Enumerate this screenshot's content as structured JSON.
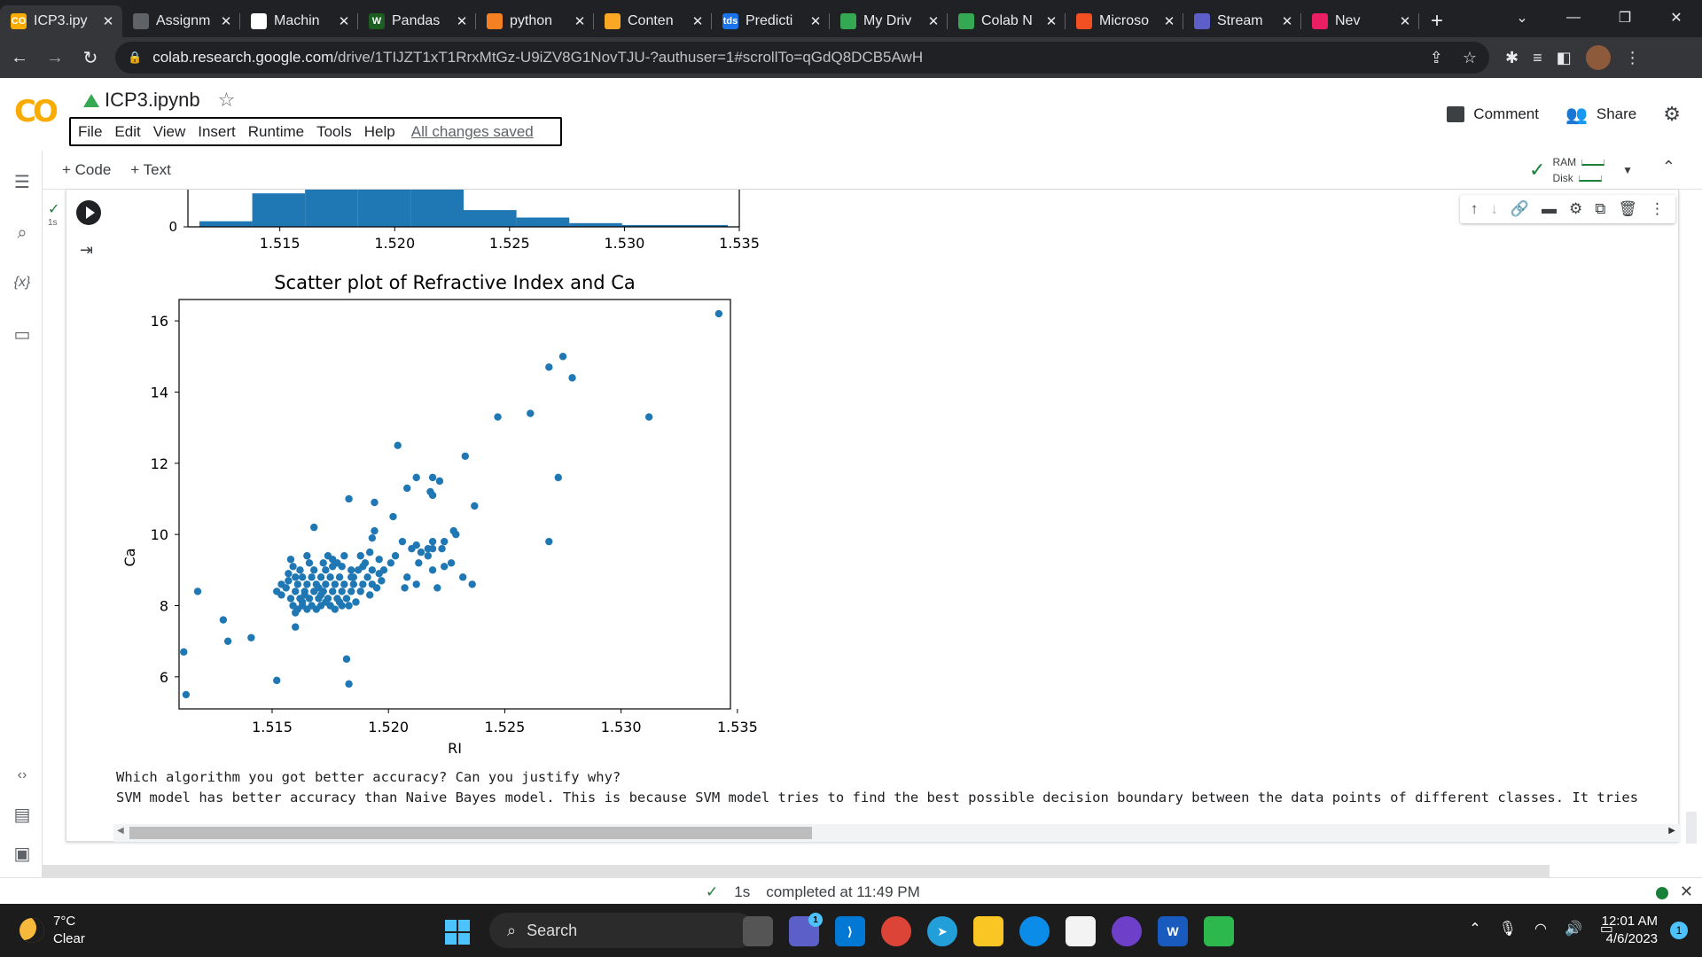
{
  "browser": {
    "tabs": [
      {
        "label": "ICP3.ipy",
        "fav_color": "#f9ab00",
        "fav_text": "CO",
        "active": true
      },
      {
        "label": "Assignm",
        "fav_color": "#5f6368",
        "fav_text": "",
        "active": false
      },
      {
        "label": "Machin",
        "fav_color": "#ffffff",
        "fav_text": "",
        "active": false
      },
      {
        "label": "Pandas",
        "fav_color": "#1b5e20",
        "fav_text": "W",
        "active": false
      },
      {
        "label": "python",
        "fav_color": "#f48024",
        "fav_text": "",
        "active": false
      },
      {
        "label": "Conten",
        "fav_color": "#f9a825",
        "fav_text": "",
        "active": false
      },
      {
        "label": "Predicti",
        "fav_color": "#1a73e8",
        "fav_text": "tds",
        "active": false
      },
      {
        "label": "My Driv",
        "fav_color": "#34a853",
        "fav_text": "",
        "active": false
      },
      {
        "label": "Colab N",
        "fav_color": "#34a853",
        "fav_text": "",
        "active": false
      },
      {
        "label": "Microso",
        "fav_color": "#f25022",
        "fav_text": "",
        "active": false
      },
      {
        "label": "Stream",
        "fav_color": "#5b5fc7",
        "fav_text": "",
        "active": false
      },
      {
        "label": "Nev",
        "fav_color": "#e91e63",
        "fav_text": "",
        "active": false
      }
    ],
    "url_host": "colab.research.google.com",
    "url_path": "/drive/1TIJZT1xT1RrxMtGz-U9iZV8G1NovTJU-?authuser=1#scrollTo=qGdQ8DCB5AwH"
  },
  "colab": {
    "logo": "CO",
    "doc_title": "ICP3.ipynb",
    "menu": [
      "File",
      "Edit",
      "View",
      "Insert",
      "Runtime",
      "Tools",
      "Help"
    ],
    "save_status": "All changes saved",
    "comment_label": "Comment",
    "share_label": "Share",
    "add_code": "+ Code",
    "add_text": "+ Text",
    "ram_label": "RAM",
    "disk_label": "Disk",
    "exec_time": "1s"
  },
  "chart_data": [
    {
      "type": "bar",
      "description": "histogram (partially visible, top cropped)",
      "x": [
        1.5115,
        1.5138,
        1.5161,
        1.5184,
        1.5207,
        1.523,
        1.5253,
        1.5276,
        1.5299,
        1.5322
      ],
      "values": [
        3,
        18,
        20,
        20,
        20,
        9,
        5,
        2,
        1,
        1
      ],
      "xticks": [
        "1.515",
        "1.520",
        "1.525",
        "1.530",
        "1.535"
      ],
      "yticks": [
        "0"
      ],
      "xlim": [
        1.511,
        1.535
      ]
    },
    {
      "type": "scatter",
      "title": "Scatter plot of Refractive Index and Ca",
      "xlabel": "RI",
      "ylabel": "Ca",
      "xlim": [
        1.511,
        1.5347
      ],
      "ylim": [
        5.1,
        16.6
      ],
      "xticks": [
        "1.515",
        "1.520",
        "1.525",
        "1.530",
        "1.535"
      ],
      "yticks": [
        "6",
        "8",
        "10",
        "12",
        "14",
        "16"
      ],
      "color": "#1f77b4",
      "points": [
        [
          1.5342,
          16.2
        ],
        [
          1.5275,
          15.0
        ],
        [
          1.5269,
          14.7
        ],
        [
          1.5279,
          14.4
        ],
        [
          1.5312,
          13.3
        ],
        [
          1.5261,
          13.4
        ],
        [
          1.5247,
          13.3
        ],
        [
          1.5204,
          12.5
        ],
        [
          1.5233,
          12.2
        ],
        [
          1.5273,
          11.6
        ],
        [
          1.5219,
          11.6
        ],
        [
          1.5222,
          11.5
        ],
        [
          1.5212,
          11.6
        ],
        [
          1.5208,
          11.3
        ],
        [
          1.5218,
          11.2
        ],
        [
          1.5219,
          11.1
        ],
        [
          1.5183,
          11.0
        ],
        [
          1.5194,
          10.9
        ],
        [
          1.5202,
          10.5
        ],
        [
          1.5237,
          10.8
        ],
        [
          1.5228,
          10.1
        ],
        [
          1.5229,
          10.0
        ],
        [
          1.5168,
          10.2
        ],
        [
          1.5194,
          10.1
        ],
        [
          1.5193,
          9.9
        ],
        [
          1.5206,
          9.8
        ],
        [
          1.5212,
          9.7
        ],
        [
          1.5217,
          9.6
        ],
        [
          1.5219,
          9.8
        ],
        [
          1.5224,
          9.8
        ],
        [
          1.5269,
          9.8
        ],
        [
          1.5223,
          9.6
        ],
        [
          1.521,
          9.6
        ],
        [
          1.5217,
          9.4
        ],
        [
          1.5214,
          9.5
        ],
        [
          1.5227,
          9.2
        ],
        [
          1.5224,
          9.1
        ],
        [
          1.5219,
          9.0
        ],
        [
          1.5212,
          8.6
        ],
        [
          1.5207,
          8.5
        ],
        [
          1.5221,
          8.5
        ],
        [
          1.5232,
          8.8
        ],
        [
          1.5236,
          8.6
        ],
        [
          1.5208,
          8.8
        ],
        [
          1.5196,
          9.3
        ],
        [
          1.5192,
          9.5
        ],
        [
          1.5188,
          9.4
        ],
        [
          1.5181,
          9.4
        ],
        [
          1.5176,
          9.3
        ],
        [
          1.5165,
          9.4
        ],
        [
          1.5172,
          9.2
        ],
        [
          1.5158,
          9.3
        ],
        [
          1.5162,
          9.0
        ],
        [
          1.5168,
          9.0
        ],
        [
          1.5173,
          9.0
        ],
        [
          1.518,
          9.1
        ],
        [
          1.5184,
          9.0
        ],
        [
          1.5189,
          9.1
        ],
        [
          1.5193,
          9.0
        ],
        [
          1.5196,
          8.9
        ],
        [
          1.5184,
          8.8
        ],
        [
          1.5179,
          8.8
        ],
        [
          1.5175,
          8.8
        ],
        [
          1.5171,
          8.8
        ],
        [
          1.5167,
          8.8
        ],
        [
          1.5163,
          8.8
        ],
        [
          1.516,
          8.8
        ],
        [
          1.5157,
          8.7
        ],
        [
          1.5161,
          8.6
        ],
        [
          1.5165,
          8.6
        ],
        [
          1.5169,
          8.6
        ],
        [
          1.5173,
          8.6
        ],
        [
          1.5177,
          8.6
        ],
        [
          1.5181,
          8.6
        ],
        [
          1.5185,
          8.6
        ],
        [
          1.5189,
          8.6
        ],
        [
          1.5193,
          8.6
        ],
        [
          1.5197,
          8.7
        ],
        [
          1.5156,
          8.5
        ],
        [
          1.516,
          8.4
        ],
        [
          1.5164,
          8.4
        ],
        [
          1.5168,
          8.4
        ],
        [
          1.5172,
          8.4
        ],
        [
          1.5176,
          8.4
        ],
        [
          1.518,
          8.4
        ],
        [
          1.5184,
          8.4
        ],
        [
          1.5188,
          8.4
        ],
        [
          1.5192,
          8.3
        ],
        [
          1.5154,
          8.3
        ],
        [
          1.5152,
          8.4
        ],
        [
          1.5158,
          8.2
        ],
        [
          1.5162,
          8.2
        ],
        [
          1.5166,
          8.2
        ],
        [
          1.517,
          8.2
        ],
        [
          1.5174,
          8.2
        ],
        [
          1.5178,
          8.2
        ],
        [
          1.5182,
          8.2
        ],
        [
          1.5186,
          8.1
        ],
        [
          1.5159,
          8.0
        ],
        [
          1.5163,
          8.0
        ],
        [
          1.5167,
          8.0
        ],
        [
          1.5171,
          8.0
        ],
        [
          1.5175,
          8.0
        ],
        [
          1.5179,
          8.1
        ],
        [
          1.5183,
          8.0
        ],
        [
          1.5161,
          7.9
        ],
        [
          1.5165,
          7.9
        ],
        [
          1.5169,
          7.9
        ],
        [
          1.516,
          7.8
        ],
        [
          1.5173,
          8.1
        ],
        [
          1.5177,
          7.9
        ],
        [
          1.5163,
          8.1
        ],
        [
          1.5171,
          8.3
        ],
        [
          1.5185,
          8.8
        ],
        [
          1.5178,
          9.2
        ],
        [
          1.519,
          9.2
        ],
        [
          1.5159,
          9.1
        ],
        [
          1.5166,
          9.2
        ],
        [
          1.5174,
          9.4
        ],
        [
          1.5187,
          9.0
        ],
        [
          1.5195,
          8.5
        ],
        [
          1.5198,
          9.0
        ],
        [
          1.5157,
          8.9
        ],
        [
          1.5191,
          8.8
        ],
        [
          1.5154,
          8.6
        ],
        [
          1.5201,
          9.2
        ],
        [
          1.518,
          8.0
        ],
        [
          1.5176,
          9.1
        ],
        [
          1.517,
          8.5
        ],
        [
          1.5164,
          8.3
        ],
        [
          1.5213,
          9.2
        ],
        [
          1.5219,
          9.6
        ],
        [
          1.5203,
          9.4
        ],
        [
          1.516,
          7.4
        ],
        [
          1.5129,
          7.6
        ],
        [
          1.5141,
          7.1
        ],
        [
          1.5131,
          7.0
        ],
        [
          1.5118,
          8.4
        ],
        [
          1.5112,
          6.7
        ],
        [
          1.5113,
          5.5
        ],
        [
          1.5152,
          5.9
        ],
        [
          1.5182,
          6.5
        ],
        [
          1.5183,
          5.8
        ]
      ]
    }
  ],
  "output": {
    "question": "Which algorithm you got better accuracy? Can you justify why?",
    "answer": "SVM model has better accuracy than Naive Bayes model. This is because SVM model tries to find the best possible decision boundary between the data points of different classes. It tries"
  },
  "status": {
    "exec_time": "1s",
    "completed": "completed at 11:49 PM"
  },
  "taskbar": {
    "temp": "7°C",
    "weather": "Clear",
    "search": "Search",
    "time": "12:01 AM",
    "date": "4/6/2023",
    "notif_count": "1",
    "teams_badge": "1"
  }
}
